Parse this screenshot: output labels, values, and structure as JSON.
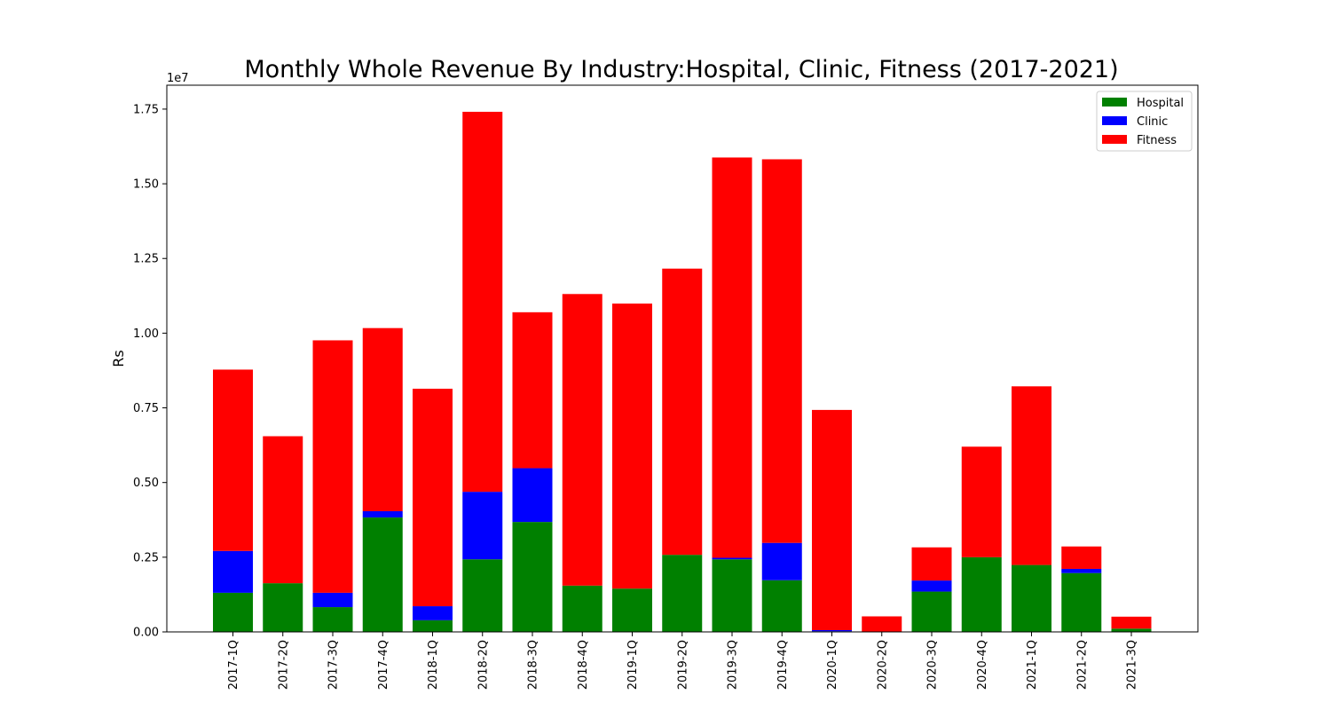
{
  "chart_data": {
    "type": "bar",
    "stacked": true,
    "title": "Monthly Whole Revenue By Industry:Hospital, Clinic, Fitness (2017-2021)",
    "xlabel": "",
    "ylabel": "Rs",
    "y_offset_label": "1e7",
    "y_scale": 10000000,
    "ylim": [
      0,
      1.83
    ],
    "yticks": [
      0.0,
      0.25,
      0.5,
      0.75,
      1.0,
      1.25,
      1.5,
      1.75
    ],
    "ytick_labels": [
      "0.00",
      "0.25",
      "0.50",
      "0.75",
      "1.00",
      "1.25",
      "1.50",
      "1.75"
    ],
    "grid": false,
    "legend_position": "top-right",
    "categories": [
      "2017-1Q",
      "2017-2Q",
      "2017-3Q",
      "2017-4Q",
      "2018-1Q",
      "2018-2Q",
      "2018-3Q",
      "2018-4Q",
      "2019-1Q",
      "2019-2Q",
      "2019-3Q",
      "2019-4Q",
      "2020-1Q",
      "2020-2Q",
      "2020-3Q",
      "2020-4Q",
      "2021-1Q",
      "2021-2Q",
      "2021-3Q"
    ],
    "series": [
      {
        "name": "Hospital",
        "color": "#008000",
        "values": [
          0.131,
          0.163,
          0.083,
          0.383,
          0.039,
          0.243,
          0.368,
          0.155,
          0.145,
          0.258,
          0.243,
          0.173,
          0.002,
          0.0,
          0.135,
          0.25,
          0.224,
          0.197,
          0.011
        ]
      },
      {
        "name": "Clinic",
        "color": "#0000ff",
        "values": [
          0.14,
          0.0,
          0.048,
          0.021,
          0.047,
          0.226,
          0.18,
          0.0,
          0.0,
          0.0,
          0.005,
          0.125,
          0.004,
          0.0,
          0.037,
          0.0,
          0.0,
          0.014,
          0.0
        ]
      },
      {
        "name": "Fitness",
        "color": "#ff0000",
        "values": [
          0.607,
          0.492,
          0.845,
          0.613,
          0.728,
          1.272,
          0.522,
          0.976,
          0.954,
          0.958,
          1.34,
          1.284,
          0.737,
          0.052,
          0.111,
          0.37,
          0.598,
          0.075,
          0.04
        ]
      }
    ]
  }
}
